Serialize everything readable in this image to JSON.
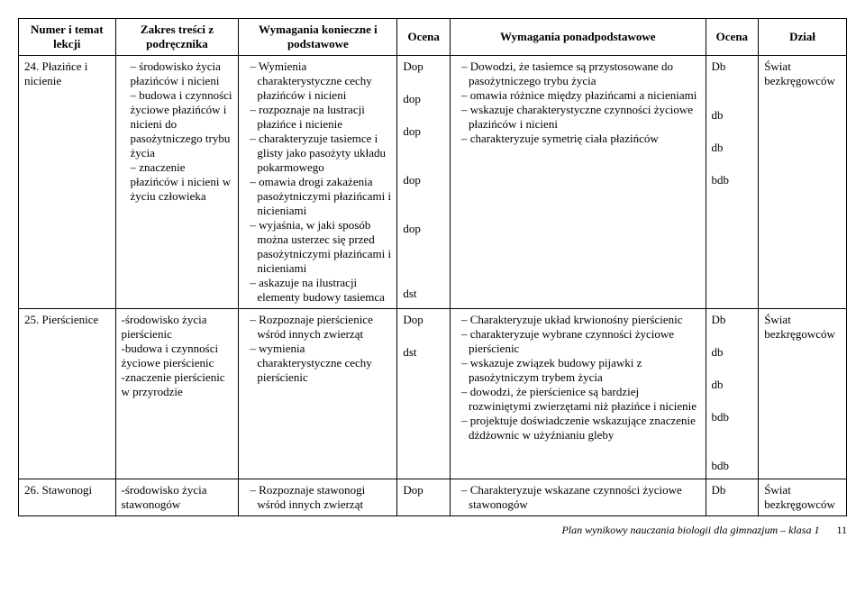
{
  "header": {
    "numer": "Numer\ni temat lekcji",
    "zakres": "Zakres treści\nz podręcznika",
    "wym_kon": "Wymagania konieczne i\npodstawowe",
    "ocena1": "Ocena",
    "wym_pon": "Wymagania ponadpodstawowe",
    "ocena2": "Ocena",
    "dzial": "Dział"
  },
  "rows": [
    {
      "numer": "24. Płazińce i nicienie",
      "zakres": [
        "środowisko życia płazińców i nicieni",
        "budowa i czynności życiowe płazińców i nicieni do pasożytniczego trybu życia",
        "znaczenie płazińców i nicieni w życiu człowieka"
      ],
      "wym_kon": [
        "Wymienia charakterystyczne cechy płazińców i nicieni",
        "rozpoznaje na lustracji płazińce i nicienie",
        "charakteryzuje tasiemce i glisty jako pasożyty układu pokarmowego",
        "omawia drogi zakażenia pasożytniczymi płazińcami i nicieniami",
        "wyjaśnia, w jaki sposób można usterzec się przed pasożytniczymi płazińcami i nicieniami",
        "askazuje na ilustracji elementy budowy tasiemca"
      ],
      "ocena1": [
        "Dop",
        "",
        "dop",
        "",
        "dop",
        "",
        "",
        "dop",
        "",
        "",
        "dop",
        "",
        "",
        "",
        "dst"
      ],
      "wym_pon": [
        "Dowodzi, że tasiemce są przystosowane do pasożytniczego trybu życia",
        "omawia różnice między płazińcami a nicieniami",
        "wskazuje charakterystyczne czynności życiowe płazińców i nicieni",
        "charakteryzuje symetrię ciała płazińców"
      ],
      "ocena2": [
        "Db",
        "",
        "",
        "db",
        "",
        "db",
        "",
        "bdb"
      ],
      "dzial": "Świat bezkręgowców"
    },
    {
      "numer": "25. Pierścienice",
      "zakres_flat": [
        "-środowisko życia pierścienic",
        "-budowa i czynności życiowe pierścienic",
        "-znaczenie pierścienic w przyrodzie"
      ],
      "wym_kon": [
        "Rozpoznaje pierścienice wśród innych zwierząt",
        "wymienia charakterystyczne cechy pierścienic"
      ],
      "ocena1": [
        "Dop",
        "",
        "dst"
      ],
      "wym_pon": [
        "Charakteryzuje układ krwionośny pierścienic",
        "charakteryzuje wybrane czynności życiowe pierścienic",
        "wskazuje związek budowy pijawki z pasożytniczym trybem życia",
        "dowodzi, że pierścienice są bardziej rozwiniętymi zwierzętami niż płazińce i nicienie",
        "projektuje doświadczenie wskazujące znaczenie dżdżownic w użyźnianiu gleby"
      ],
      "ocena2": [
        "Db",
        "",
        "db",
        "",
        "db",
        "",
        "bdb",
        "",
        "",
        "bdb"
      ],
      "dzial": "Świat bezkręgowców"
    },
    {
      "numer": "26. Stawonogi",
      "zakres_flat": [
        "-środowisko życia stawonogów"
      ],
      "wym_kon": [
        "Rozpoznaje stawonogi wśród innych zwierząt"
      ],
      "ocena1": [
        "Dop"
      ],
      "wym_pon": [
        "Charakteryzuje wskazane czynności życiowe stawonogów"
      ],
      "ocena2": [
        "Db"
      ],
      "dzial": "Świat bezkręgowców"
    }
  ],
  "footer": {
    "text": "Plan wynikowy nauczania biologii dla gimnazjum – klasa 1",
    "page": "11"
  }
}
